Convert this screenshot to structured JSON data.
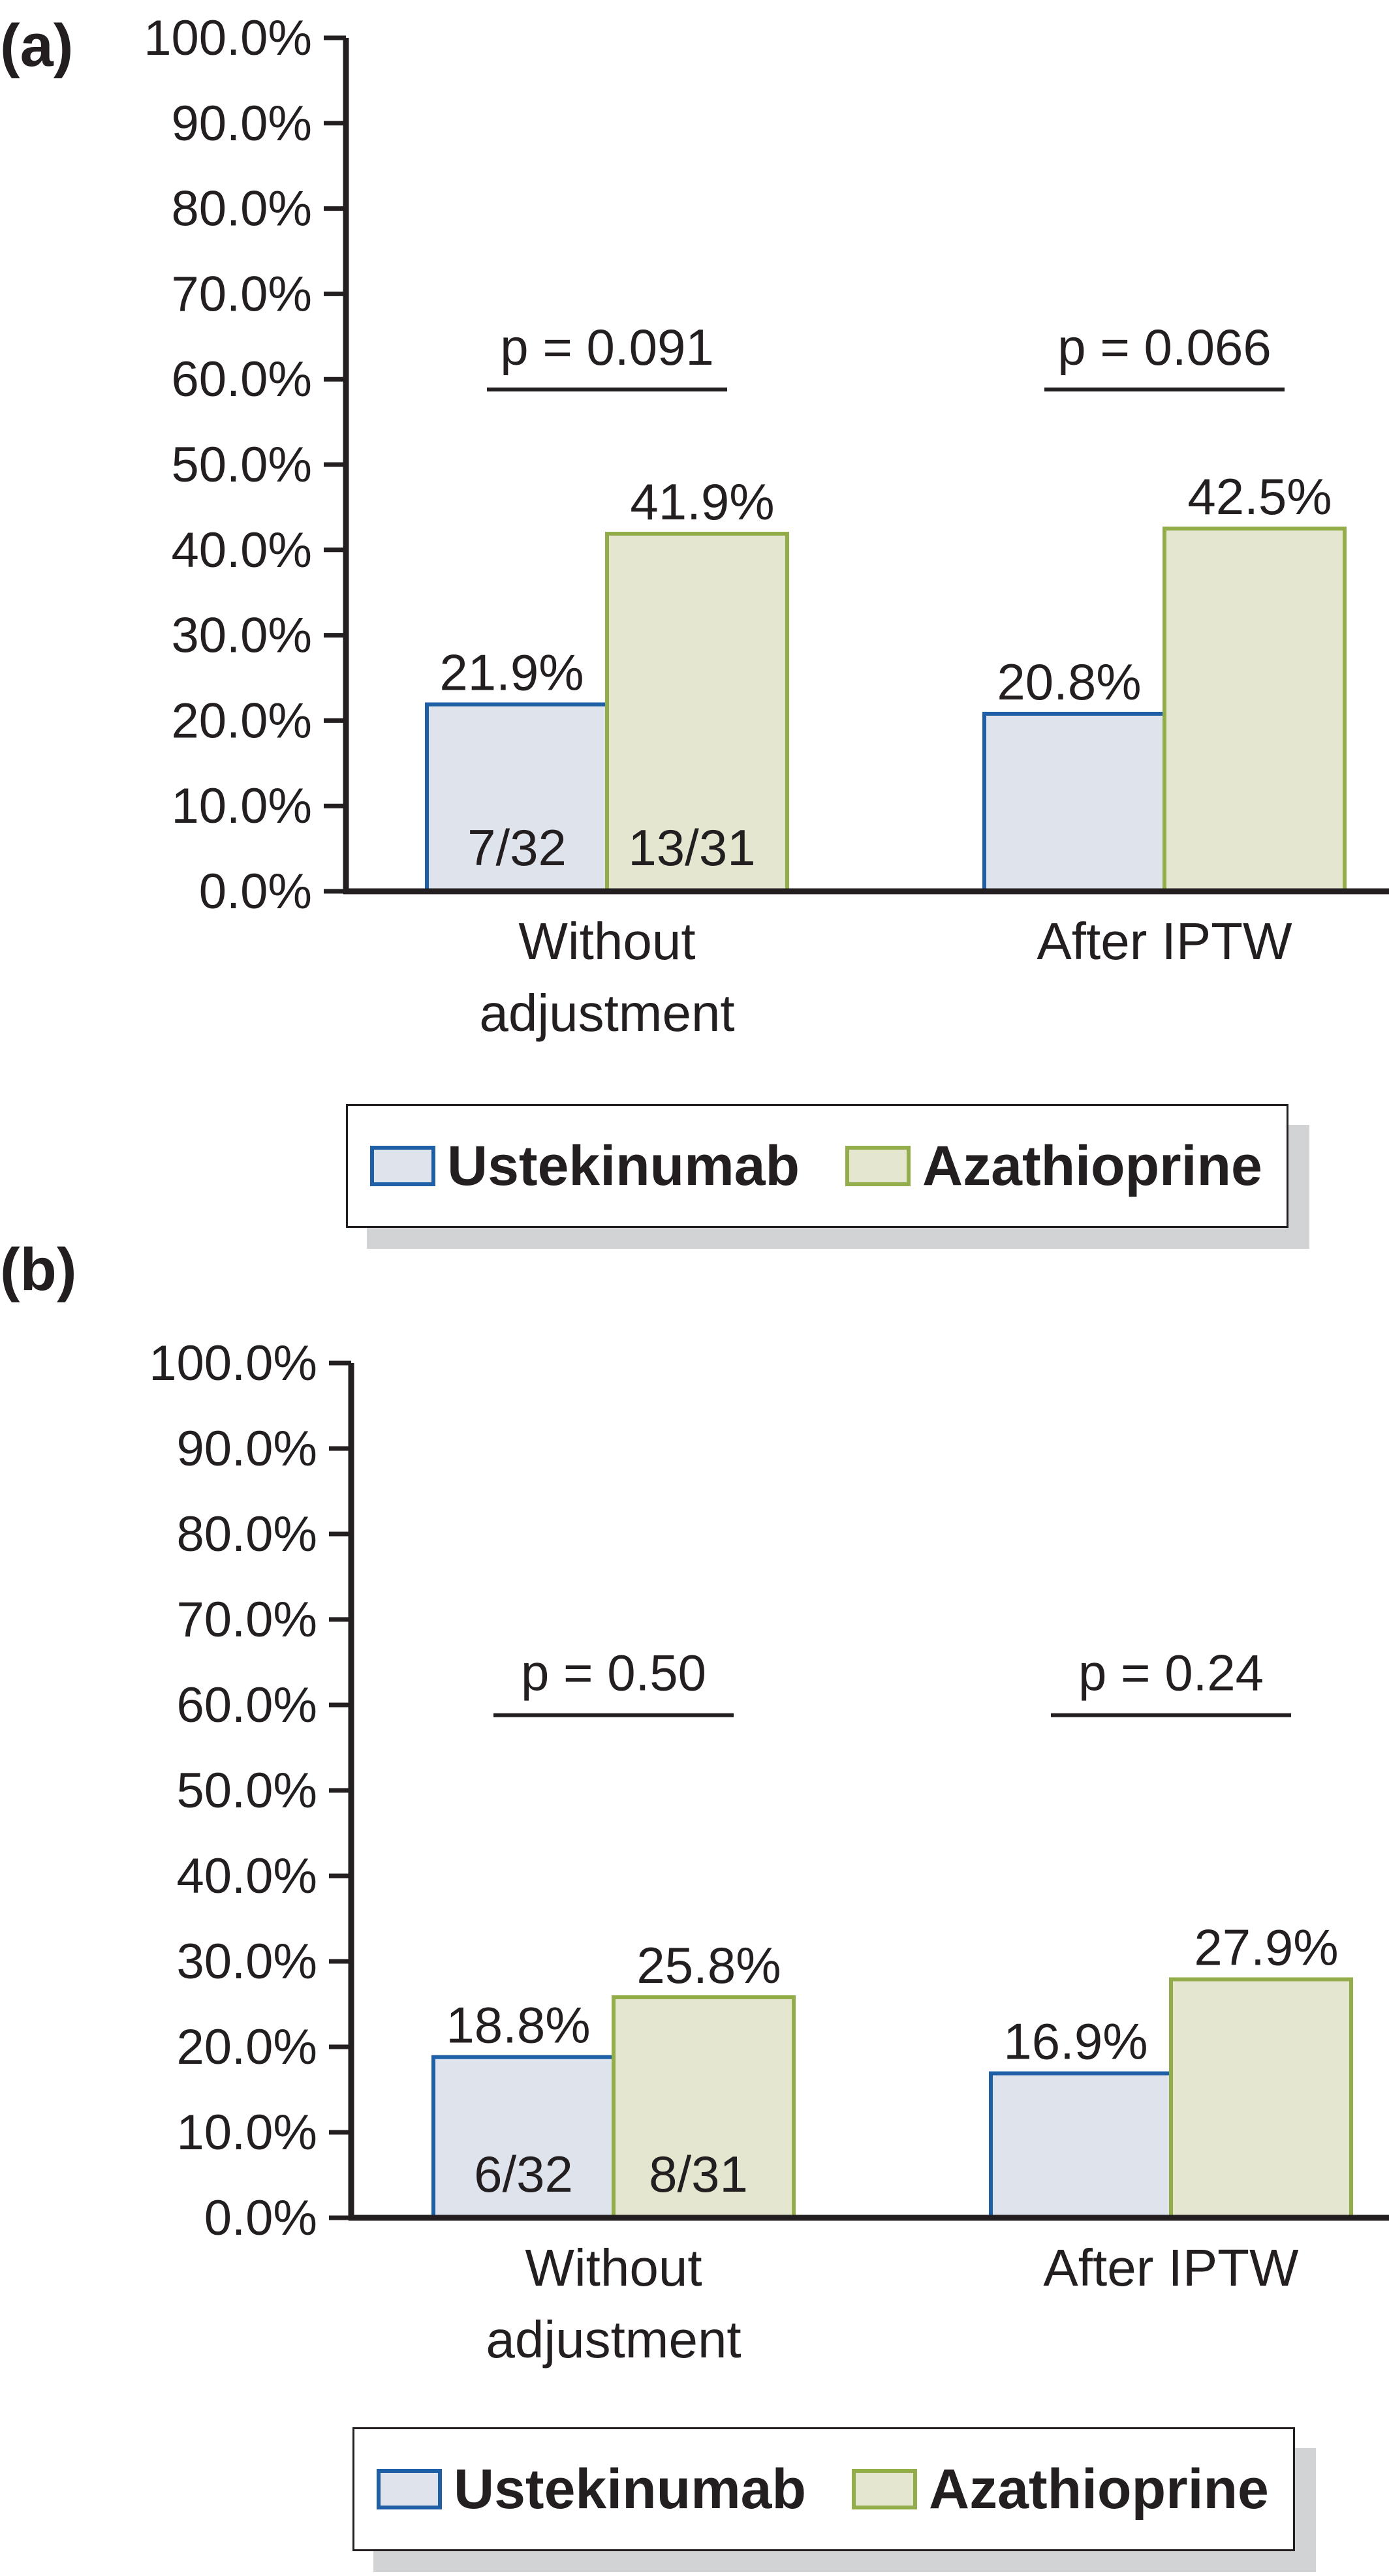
{
  "colors": {
    "axis": "#231f20",
    "ustekinumab_fill": "#dfe3ec",
    "ustekinumab_stroke": "#1f5fa6",
    "azathioprine_fill": "#e4e6d0",
    "azathioprine_stroke": "#93ad4a",
    "legend_shadow": "#d1d3d4"
  },
  "legend": {
    "items": [
      {
        "label": "Ustekinumab",
        "series": 0
      },
      {
        "label": "Azathioprine",
        "series": 1
      }
    ]
  },
  "chart_data": [
    {
      "panel_label": "(a)",
      "type": "bar",
      "categories": [
        "Without adjustment",
        "After IPTW"
      ],
      "category_lines": [
        [
          "Without",
          "adjustment"
        ],
        [
          "After IPTW"
        ]
      ],
      "ylim": [
        0,
        100
      ],
      "yticks": [
        0,
        10,
        20,
        30,
        40,
        50,
        60,
        70,
        80,
        90,
        100
      ],
      "ytick_labels": [
        "0.0%",
        "10.0%",
        "20.0%",
        "30.0%",
        "40.0%",
        "50.0%",
        "60.0%",
        "70.0%",
        "80.0%",
        "90.0%",
        "100.0%"
      ],
      "series": [
        {
          "name": "Ustekinumab",
          "values": [
            21.9,
            20.8
          ],
          "value_labels": [
            "21.9%",
            "20.8%"
          ],
          "count_labels": [
            "7/32",
            ""
          ]
        },
        {
          "name": "Azathioprine",
          "values": [
            41.9,
            42.5
          ],
          "value_labels": [
            "41.9%",
            "42.5%"
          ],
          "count_labels": [
            "13/31",
            ""
          ]
        }
      ],
      "annotations": [
        "p = 0.091",
        "p = 0.066"
      ],
      "legend_position": "bottom"
    },
    {
      "panel_label": "(b)",
      "type": "bar",
      "categories": [
        "Without adjustment",
        "After IPTW"
      ],
      "category_lines": [
        [
          "Without",
          "adjustment"
        ],
        [
          "After IPTW"
        ]
      ],
      "ylim": [
        0,
        100
      ],
      "yticks": [
        0,
        10,
        20,
        30,
        40,
        50,
        60,
        70,
        80,
        90,
        100
      ],
      "ytick_labels": [
        "0.0%",
        "10.0%",
        "20.0%",
        "30.0%",
        "40.0%",
        "50.0%",
        "60.0%",
        "70.0%",
        "80.0%",
        "90.0%",
        "100.0%"
      ],
      "series": [
        {
          "name": "Ustekinumab",
          "values": [
            18.8,
            16.9
          ],
          "value_labels": [
            "18.8%",
            "16.9%"
          ],
          "count_labels": [
            "6/32",
            ""
          ]
        },
        {
          "name": "Azathioprine",
          "values": [
            25.8,
            27.9
          ],
          "value_labels": [
            "25.8%",
            "27.9%"
          ],
          "count_labels": [
            "8/31",
            ""
          ]
        }
      ],
      "annotations": [
        "p = 0.50",
        "p = 0.24"
      ],
      "legend_position": "bottom"
    }
  ]
}
